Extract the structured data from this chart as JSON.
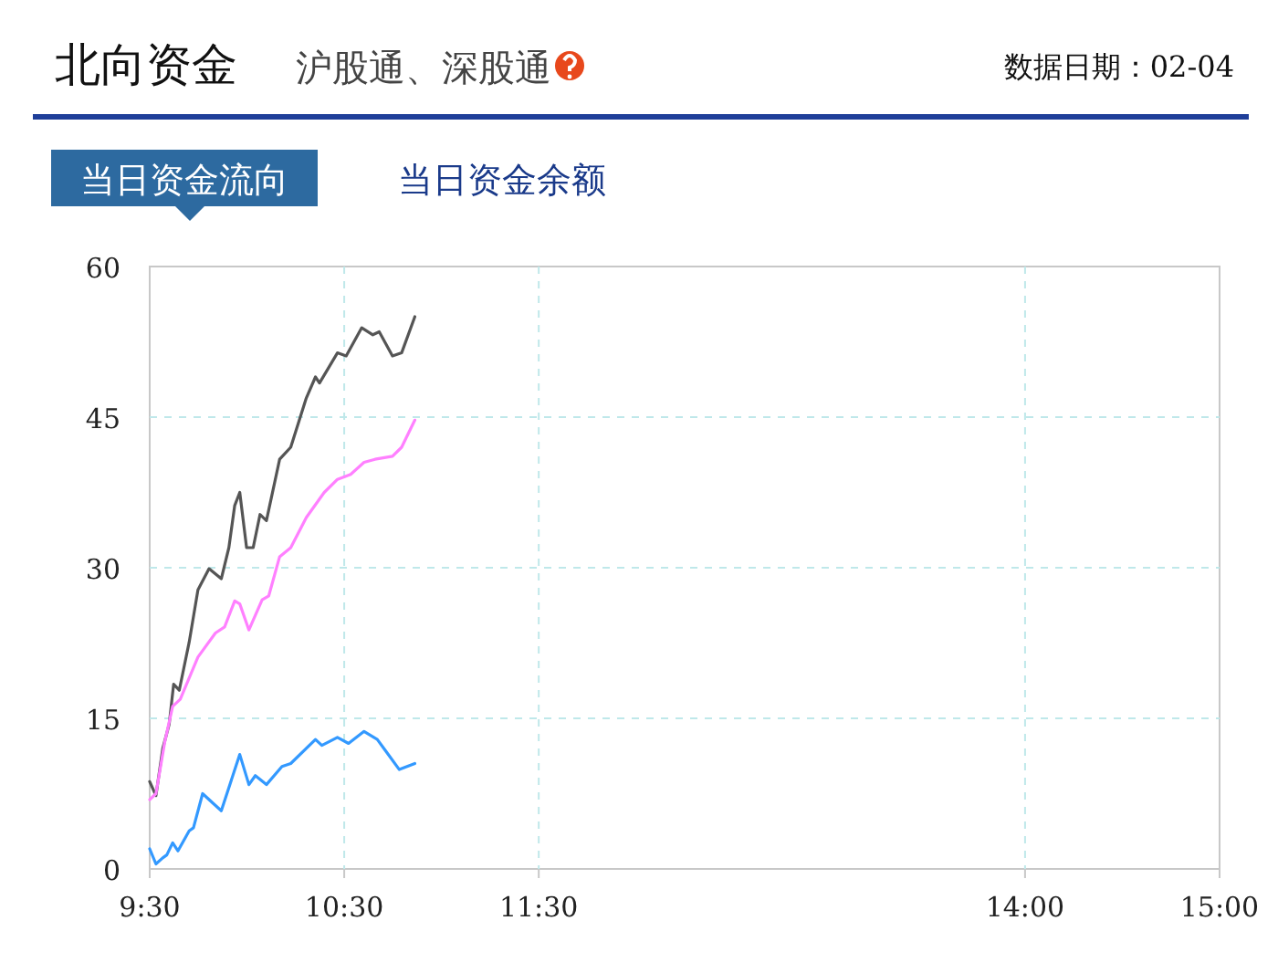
{
  "chart_data": {
    "type": "line",
    "title": "北向资金",
    "subtitle": "沪股通、深股通",
    "annotations": [
      "数据日期：02-04",
      "当日资金流向",
      "当日资金余额"
    ],
    "xlim": [
      9.5,
      15
    ],
    "ylim": [
      0,
      60
    ],
    "xticks": [
      {
        "value": 9.5,
        "label": "9:30"
      },
      {
        "value": 10.5,
        "label": "10:30"
      },
      {
        "value": 11.5,
        "label": "11:30"
      },
      {
        "value": 14,
        "label": "14:00"
      },
      {
        "value": 15,
        "label": "15:00"
      }
    ],
    "yticks": [
      0,
      15,
      30,
      45,
      60
    ],
    "grid": true,
    "series": [
      {
        "color": "#555555",
        "x": [
          9.5,
          9.532,
          9.567,
          9.6,
          9.623,
          9.652,
          9.703,
          9.748,
          9.805,
          9.868,
          9.907,
          9.937,
          9.963,
          9.998,
          10.032,
          10.067,
          10.1,
          10.168,
          10.225,
          10.305,
          10.352,
          10.373,
          10.465,
          10.51,
          10.59,
          10.647,
          10.68,
          10.748,
          10.795,
          10.863
        ],
        "values": [
          8.7,
          7.3,
          12,
          14.4,
          18.4,
          17.8,
          22.6,
          27.8,
          29.9,
          28.9,
          32,
          36.2,
          37.5,
          32,
          32,
          35.3,
          34.7,
          40.8,
          42,
          46.9,
          49,
          48.4,
          51.4,
          51.1,
          53.9,
          53.2,
          53.5,
          51.1,
          51.4,
          55
        ]
      },
      {
        "color": "#ff80ff",
        "x": [
          9.5,
          9.532,
          9.577,
          9.618,
          9.657,
          9.748,
          9.838,
          9.885,
          9.937,
          9.963,
          10.01,
          10.078,
          10.112,
          10.168,
          10.225,
          10.305,
          10.397,
          10.465,
          10.533,
          10.602,
          10.658,
          10.748,
          10.795,
          10.863
        ],
        "values": [
          6.9,
          7.5,
          12.6,
          16.2,
          16.9,
          21.1,
          23.5,
          24.1,
          26.7,
          26.4,
          23.8,
          26.8,
          27.2,
          31.1,
          32,
          35,
          37.5,
          38.8,
          39.3,
          40.5,
          40.8,
          41.1,
          42,
          44.7
        ]
      },
      {
        "color": "#3399ff",
        "x": [
          9.5,
          9.532,
          9.567,
          9.588,
          9.618,
          9.645,
          9.703,
          9.725,
          9.772,
          9.828,
          9.868,
          9.907,
          9.963,
          10.01,
          10.043,
          10.1,
          10.18,
          10.225,
          10.352,
          10.385,
          10.465,
          10.522,
          10.602,
          10.67,
          10.715,
          10.783,
          10.863
        ],
        "values": [
          2,
          0.5,
          1.1,
          1.4,
          2.6,
          1.8,
          3.8,
          4.1,
          7.5,
          6.5,
          5.8,
          8.1,
          11.4,
          8.4,
          9.3,
          8.4,
          10.2,
          10.5,
          12.9,
          12.3,
          13.1,
          12.5,
          13.7,
          12.9,
          11.7,
          9.9,
          10.5
        ]
      }
    ]
  }
}
